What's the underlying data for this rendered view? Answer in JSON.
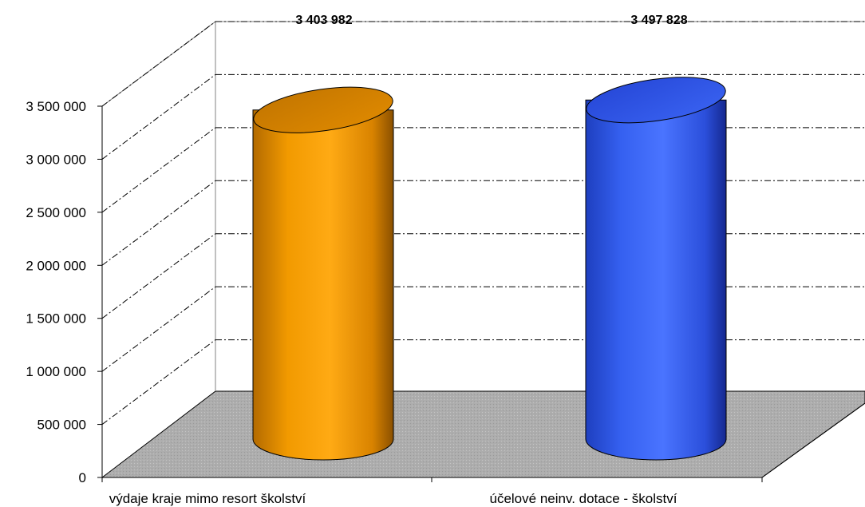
{
  "chart_data": {
    "type": "bar",
    "style": "3d-cylinder",
    "categories": [
      "výdaje kraje mimo resort školství",
      "účelové neinv. dotace - školství"
    ],
    "values": [
      3403982,
      3497828
    ],
    "data_labels": [
      "3 403 982",
      "3 497 828"
    ],
    "y_ticks": [
      "0",
      "500 000",
      "1 000 000",
      "1 500 000",
      "2 000 000",
      "2 500 000",
      "3 000 000",
      "3 500 000"
    ],
    "ylim": [
      0,
      3500000
    ],
    "grid": true,
    "legend": "none",
    "colors": {
      "bar_1": "#FFA500",
      "bar_2": "#3366FF",
      "floor": "#B0B0B0"
    }
  }
}
